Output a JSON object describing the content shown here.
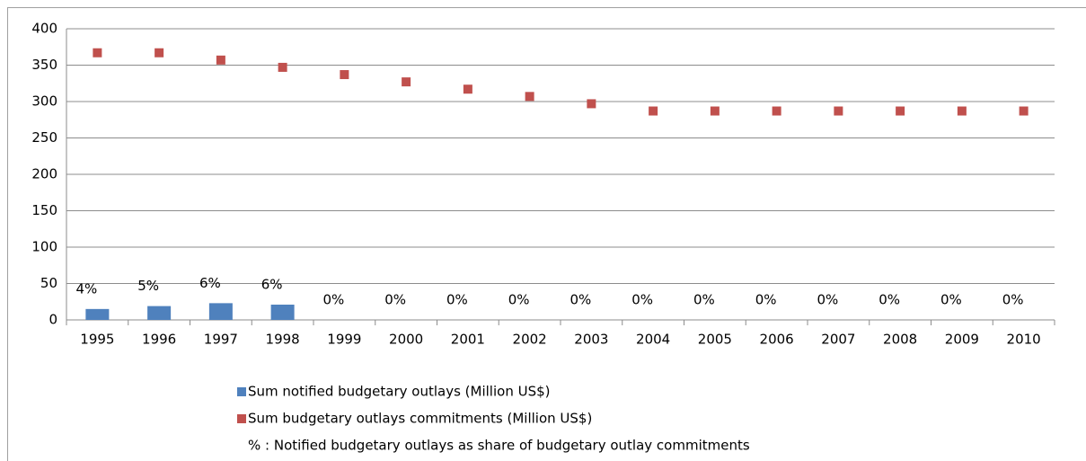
{
  "chart_data": {
    "type": "bar",
    "categories": [
      "1995",
      "1996",
      "1997",
      "1998",
      "1999",
      "2000",
      "2001",
      "2002",
      "2003",
      "2004",
      "2005",
      "2006",
      "2007",
      "2008",
      "2009",
      "2010"
    ],
    "series": [
      {
        "name": "Sum notified budgetary outlays (Million US$)",
        "color": "#4f81bd",
        "kind": "bar",
        "values": [
          15,
          19,
          23,
          21,
          0,
          0,
          0,
          0,
          0,
          0,
          0,
          0,
          0,
          0,
          0,
          0
        ]
      },
      {
        "name": "Sum budgetary outlays commitments (Million US$)",
        "color": "#c0504d",
        "kind": "marker",
        "values": [
          367,
          367,
          357,
          347,
          337,
          327,
          317,
          307,
          297,
          287,
          287,
          287,
          287,
          287,
          287,
          287
        ]
      },
      {
        "name": "% : Notified budgetary outlays as share of budgetary outlay commitments",
        "kind": "label",
        "values": [
          4,
          5,
          6,
          6,
          0,
          0,
          0,
          0,
          0,
          0,
          0,
          0,
          0,
          0,
          0,
          0
        ],
        "value_labels": [
          "4%",
          "5%",
          "6%",
          "6%",
          "0%",
          "0%",
          "0%",
          "0%",
          "0%",
          "0%",
          "0%",
          "0%",
          "0%",
          "0%",
          "0%",
          "0%"
        ]
      }
    ],
    "ylim": [
      0,
      400
    ],
    "yticks": [
      0,
      50,
      100,
      150,
      200,
      250,
      300,
      350,
      400
    ],
    "grid": true
  }
}
